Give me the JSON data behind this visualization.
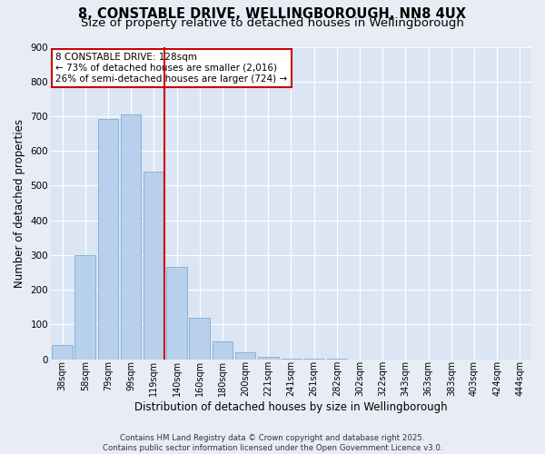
{
  "title_line1": "8, CONSTABLE DRIVE, WELLINGBOROUGH, NN8 4UX",
  "title_line2": "Size of property relative to detached houses in Wellingborough",
  "xlabel": "Distribution of detached houses by size in Wellingborough",
  "ylabel": "Number of detached properties",
  "categories": [
    "38sqm",
    "58sqm",
    "79sqm",
    "99sqm",
    "119sqm",
    "140sqm",
    "160sqm",
    "180sqm",
    "200sqm",
    "221sqm",
    "241sqm",
    "261sqm",
    "282sqm",
    "302sqm",
    "322sqm",
    "343sqm",
    "363sqm",
    "383sqm",
    "403sqm",
    "424sqm",
    "444sqm"
  ],
  "values": [
    40,
    300,
    693,
    706,
    540,
    265,
    120,
    52,
    20,
    8,
    3,
    2,
    1,
    0,
    0,
    0,
    0,
    0,
    0,
    0,
    0
  ],
  "bar_color": "#b8d0eb",
  "bar_edge_color": "#7aadd4",
  "vline_x_index": 4,
  "vline_color": "#cc0000",
  "annotation_text": "8 CONSTABLE DRIVE: 128sqm\n← 73% of detached houses are smaller (2,016)\n26% of semi-detached houses are larger (724) →",
  "annotation_box_color": "#ffffff",
  "annotation_box_edge": "#cc0000",
  "ylim": [
    0,
    900
  ],
  "yticks": [
    0,
    100,
    200,
    300,
    400,
    500,
    600,
    700,
    800,
    900
  ],
  "bg_color": "#e8edf5",
  "plot_bg_color": "#dce5f3",
  "grid_color": "#ffffff",
  "footnote": "Contains HM Land Registry data © Crown copyright and database right 2025.\nContains public sector information licensed under the Open Government Licence v3.0.",
  "title_fontsize": 10.5,
  "subtitle_fontsize": 9.5,
  "tick_fontsize": 7,
  "label_fontsize": 8.5,
  "annotation_fontsize": 7.5,
  "footnote_fontsize": 6.2
}
